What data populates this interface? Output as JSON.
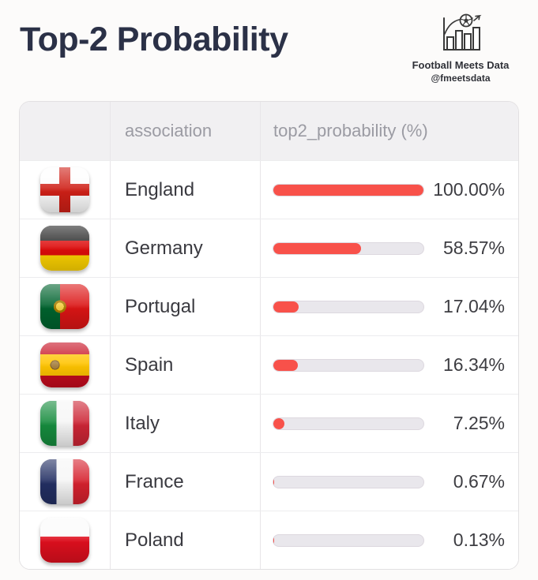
{
  "header": {
    "title": "Top-2 Probability"
  },
  "brand": {
    "name": "Football Meets Data",
    "handle": "@fmeetsdata",
    "logo_icon": "bar-chart-football-icon"
  },
  "colors": {
    "bar_fill": "#f8514a",
    "bar_track": "#e9e7ec",
    "title_text": "#2b3147",
    "header_bg": "#f1f0f2"
  },
  "table": {
    "columns": [
      "",
      "association",
      "top2_probability (%)"
    ],
    "rows": [
      {
        "flag": "england",
        "association": "England",
        "probability_pct": 100.0,
        "probability_label": "100.00%"
      },
      {
        "flag": "germany",
        "association": "Germany",
        "probability_pct": 58.57,
        "probability_label": "58.57%"
      },
      {
        "flag": "portugal",
        "association": "Portugal",
        "probability_pct": 17.04,
        "probability_label": "17.04%"
      },
      {
        "flag": "spain",
        "association": "Spain",
        "probability_pct": 16.34,
        "probability_label": "16.34%"
      },
      {
        "flag": "italy",
        "association": "Italy",
        "probability_pct": 7.25,
        "probability_label": "7.25%"
      },
      {
        "flag": "france",
        "association": "France",
        "probability_pct": 0.67,
        "probability_label": "0.67%"
      },
      {
        "flag": "poland",
        "association": "Poland",
        "probability_pct": 0.13,
        "probability_label": "0.13%"
      }
    ]
  },
  "chart_data": {
    "type": "bar",
    "orientation": "horizontal",
    "title": "Top-2 Probability",
    "xlabel": "top2_probability (%)",
    "categories": [
      "England",
      "Germany",
      "Portugal",
      "Spain",
      "Italy",
      "France",
      "Poland"
    ],
    "values": [
      100.0,
      58.57,
      17.04,
      16.34,
      7.25,
      0.67,
      0.13
    ],
    "value_labels": [
      "100.00%",
      "58.57%",
      "17.04%",
      "16.34%",
      "7.25%",
      "0.67%",
      "0.13%"
    ],
    "xlim": [
      0,
      100
    ],
    "grid": false,
    "legend": false,
    "bar_color": "#f8514a",
    "track_color": "#e9e7ec"
  }
}
